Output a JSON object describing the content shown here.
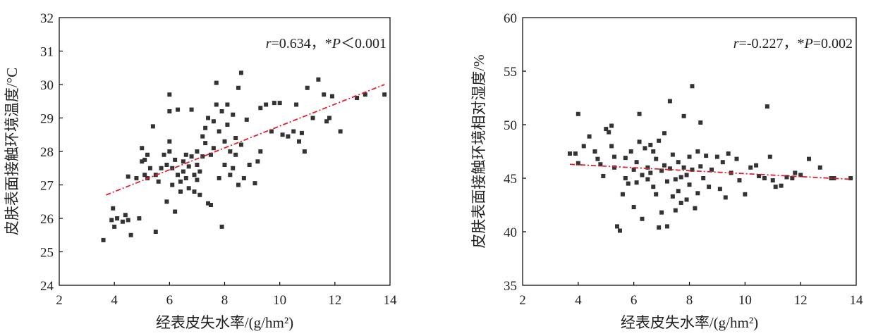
{
  "chart_data": [
    {
      "type": "scatter",
      "xlabel": "经表皮失水率/(g/hm²)",
      "ylabel": "皮肤表面接触环境温度/°C",
      "xlim": [
        2,
        14
      ],
      "ylim": [
        24,
        32
      ],
      "xticks": [
        2,
        4,
        6,
        8,
        10,
        12,
        14
      ],
      "yticks": [
        24,
        25,
        26,
        27,
        28,
        29,
        30,
        31,
        32
      ],
      "annotation": {
        "r_label": "r",
        "r_value": "=0.634，*",
        "p_label": "P",
        "p_value": "＜0.001"
      },
      "trendline": {
        "x": [
          3.7,
          13.8
        ],
        "y": [
          26.7,
          30.0
        ]
      },
      "marker_color": "#333333",
      "trend_color": "#e0202a",
      "points": [
        [
          3.6,
          25.35
        ],
        [
          3.9,
          25.95
        ],
        [
          3.95,
          26.3
        ],
        [
          4.0,
          25.75
        ],
        [
          4.1,
          26.0
        ],
        [
          4.3,
          25.9
        ],
        [
          4.4,
          26.1
        ],
        [
          4.5,
          25.95
        ],
        [
          4.6,
          25.5
        ],
        [
          4.5,
          27.25
        ],
        [
          4.8,
          27.2
        ],
        [
          4.9,
          26.0
        ],
        [
          5.0,
          27.7
        ],
        [
          5.0,
          28.1
        ],
        [
          5.1,
          27.3
        ],
        [
          5.1,
          27.75
        ],
        [
          5.2,
          27.2
        ],
        [
          5.2,
          27.9
        ],
        [
          5.3,
          27.5
        ],
        [
          5.4,
          28.75
        ],
        [
          5.5,
          25.6
        ],
        [
          5.5,
          27.3
        ],
        [
          5.6,
          27.1
        ],
        [
          5.7,
          27.5
        ],
        [
          5.8,
          27.9
        ],
        [
          5.9,
          26.5
        ],
        [
          5.9,
          27.6
        ],
        [
          6.0,
          28.0
        ],
        [
          6.0,
          28.3
        ],
        [
          6.0,
          29.2
        ],
        [
          6.0,
          29.7
        ],
        [
          6.1,
          27.0
        ],
        [
          6.1,
          27.5
        ],
        [
          6.2,
          26.2
        ],
        [
          6.2,
          27.75
        ],
        [
          6.3,
          29.25
        ],
        [
          6.3,
          27.3
        ],
        [
          6.4,
          27.1
        ],
        [
          6.4,
          26.8
        ],
        [
          6.5,
          27.7
        ],
        [
          6.5,
          27.4
        ],
        [
          6.6,
          27.2
        ],
        [
          6.6,
          27.9
        ],
        [
          6.7,
          26.9
        ],
        [
          6.7,
          27.55
        ],
        [
          6.8,
          29.25
        ],
        [
          6.8,
          27.85
        ],
        [
          6.9,
          26.8
        ],
        [
          6.9,
          27.3
        ],
        [
          7.0,
          27.15
        ],
        [
          7.0,
          27.6
        ],
        [
          7.0,
          28.0
        ],
        [
          7.1,
          26.7
        ],
        [
          7.1,
          27.4
        ],
        [
          7.2,
          28.45
        ],
        [
          7.2,
          27.85
        ],
        [
          7.3,
          28.7
        ],
        [
          7.3,
          28.25
        ],
        [
          7.4,
          29.0
        ],
        [
          7.4,
          26.45
        ],
        [
          7.5,
          26.4
        ],
        [
          7.5,
          27.9
        ],
        [
          7.6,
          28.1
        ],
        [
          7.6,
          28.9
        ],
        [
          7.7,
          30.05
        ],
        [
          7.7,
          29.4
        ],
        [
          7.8,
          28.6
        ],
        [
          7.8,
          27.2
        ],
        [
          7.9,
          25.75
        ],
        [
          7.9,
          29.2
        ],
        [
          8.0,
          28.3
        ],
        [
          8.0,
          27.6
        ],
        [
          8.1,
          28.8
        ],
        [
          8.1,
          29.4
        ],
        [
          8.2,
          27.3
        ],
        [
          8.2,
          28.0
        ],
        [
          8.3,
          27.5
        ],
        [
          8.3,
          29.1
        ],
        [
          8.4,
          27.9
        ],
        [
          8.4,
          28.4
        ],
        [
          8.5,
          29.9
        ],
        [
          8.5,
          27.0
        ],
        [
          8.6,
          28.2
        ],
        [
          8.6,
          30.35
        ],
        [
          8.7,
          27.2
        ],
        [
          8.8,
          28.95
        ],
        [
          8.9,
          27.6
        ],
        [
          9.1,
          27.05
        ],
        [
          9.2,
          27.7
        ],
        [
          9.3,
          28.0
        ],
        [
          9.3,
          29.3
        ],
        [
          9.5,
          29.4
        ],
        [
          9.7,
          28.6
        ],
        [
          9.8,
          29.45
        ],
        [
          10.0,
          29.45
        ],
        [
          10.1,
          28.5
        ],
        [
          10.3,
          28.45
        ],
        [
          10.5,
          28.6
        ],
        [
          10.6,
          29.4
        ],
        [
          10.7,
          28.3
        ],
        [
          10.8,
          28.55
        ],
        [
          10.9,
          28.0
        ],
        [
          11.0,
          29.9
        ],
        [
          11.2,
          29.0
        ],
        [
          11.4,
          30.15
        ],
        [
          11.6,
          29.7
        ],
        [
          11.7,
          28.9
        ],
        [
          11.8,
          29.0
        ],
        [
          11.9,
          29.65
        ],
        [
          12.2,
          28.6
        ],
        [
          12.8,
          29.6
        ],
        [
          13.1,
          29.7
        ],
        [
          13.8,
          29.7
        ]
      ]
    },
    {
      "type": "scatter",
      "xlabel": "经表皮失水率/(g/hm²)",
      "ylabel": "皮肤表面接触环境相对湿度/%",
      "xlim": [
        2,
        14
      ],
      "ylim": [
        35,
        60
      ],
      "xticks": [
        2,
        4,
        6,
        8,
        10,
        12,
        14
      ],
      "yticks": [
        35,
        40,
        45,
        50,
        55,
        60
      ],
      "annotation": {
        "r_label": "r",
        "r_value": "=-0.227，*",
        "p_label": "P",
        "p_value": "=0.002"
      },
      "trendline": {
        "x": [
          3.7,
          13.8
        ],
        "y": [
          46.3,
          44.9
        ]
      },
      "marker_color": "#333333",
      "trend_color": "#e0202a",
      "points": [
        [
          3.7,
          47.3
        ],
        [
          3.9,
          47.3
        ],
        [
          4.0,
          51.0
        ],
        [
          4.0,
          46.4
        ],
        [
          4.2,
          48.0
        ],
        [
          4.4,
          48.9
        ],
        [
          4.6,
          47.5
        ],
        [
          4.7,
          46.8
        ],
        [
          4.8,
          46.3
        ],
        [
          4.9,
          45.2
        ],
        [
          5.0,
          49.6
        ],
        [
          5.1,
          49.3
        ],
        [
          5.2,
          49.9
        ],
        [
          5.2,
          48.0
        ],
        [
          5.3,
          47.0
        ],
        [
          5.3,
          46.0
        ],
        [
          5.4,
          40.5
        ],
        [
          5.5,
          40.1
        ],
        [
          5.6,
          43.5
        ],
        [
          5.7,
          45.0
        ],
        [
          5.7,
          46.9
        ],
        [
          5.8,
          44.5
        ],
        [
          5.9,
          47.5
        ],
        [
          6.0,
          45.8
        ],
        [
          6.0,
          42.3
        ],
        [
          6.1,
          46.5
        ],
        [
          6.1,
          44.6
        ],
        [
          6.2,
          51.0
        ],
        [
          6.2,
          48.4
        ],
        [
          6.3,
          41.2
        ],
        [
          6.3,
          45.3
        ],
        [
          6.4,
          47.8
        ],
        [
          6.5,
          46.0
        ],
        [
          6.5,
          44.9
        ],
        [
          6.6,
          48.1
        ],
        [
          6.6,
          45.5
        ],
        [
          6.7,
          47.5
        ],
        [
          6.7,
          44.2
        ],
        [
          6.8,
          46.8
        ],
        [
          6.8,
          43.5
        ],
        [
          6.9,
          40.4
        ],
        [
          6.9,
          48.5
        ],
        [
          7.0,
          45.7
        ],
        [
          7.0,
          41.8
        ],
        [
          7.1,
          49.2
        ],
        [
          7.1,
          46.2
        ],
        [
          7.2,
          44.7
        ],
        [
          7.2,
          40.5
        ],
        [
          7.3,
          52.2
        ],
        [
          7.3,
          45.9
        ],
        [
          7.4,
          47.2
        ],
        [
          7.4,
          43.3
        ],
        [
          7.5,
          44.9
        ],
        [
          7.5,
          42.0
        ],
        [
          7.6,
          46.5
        ],
        [
          7.6,
          43.8
        ],
        [
          7.7,
          45.1
        ],
        [
          7.7,
          42.7
        ],
        [
          7.8,
          50.8
        ],
        [
          7.8,
          46.0
        ],
        [
          7.9,
          45.3
        ],
        [
          7.9,
          43.0
        ],
        [
          8.0,
          47.0
        ],
        [
          8.0,
          44.4
        ],
        [
          8.1,
          53.6
        ],
        [
          8.1,
          45.8
        ],
        [
          8.2,
          42.2
        ],
        [
          8.3,
          47.5
        ],
        [
          8.3,
          43.6
        ],
        [
          8.4,
          50.2
        ],
        [
          8.4,
          46.1
        ],
        [
          8.5,
          45.0
        ],
        [
          8.6,
          47.1
        ],
        [
          8.7,
          44.2
        ],
        [
          8.8,
          45.8
        ],
        [
          9.0,
          47.0
        ],
        [
          9.1,
          44.0
        ],
        [
          9.2,
          46.5
        ],
        [
          9.3,
          43.2
        ],
        [
          9.4,
          47.3
        ],
        [
          9.5,
          45.5
        ],
        [
          9.7,
          46.8
        ],
        [
          9.8,
          44.8
        ],
        [
          10.0,
          43.5
        ],
        [
          10.2,
          46.0
        ],
        [
          10.4,
          46.2
        ],
        [
          10.5,
          45.2
        ],
        [
          10.7,
          45.0
        ],
        [
          10.8,
          51.7
        ],
        [
          10.9,
          47.0
        ],
        [
          11.0,
          44.8
        ],
        [
          11.1,
          44.2
        ],
        [
          11.3,
          44.3
        ],
        [
          11.5,
          45.1
        ],
        [
          11.7,
          45.0
        ],
        [
          11.8,
          45.5
        ],
        [
          12.0,
          45.3
        ],
        [
          12.3,
          46.8
        ],
        [
          12.7,
          46.0
        ],
        [
          13.1,
          45.0
        ],
        [
          13.2,
          45.0
        ],
        [
          13.8,
          45.0
        ]
      ]
    }
  ]
}
